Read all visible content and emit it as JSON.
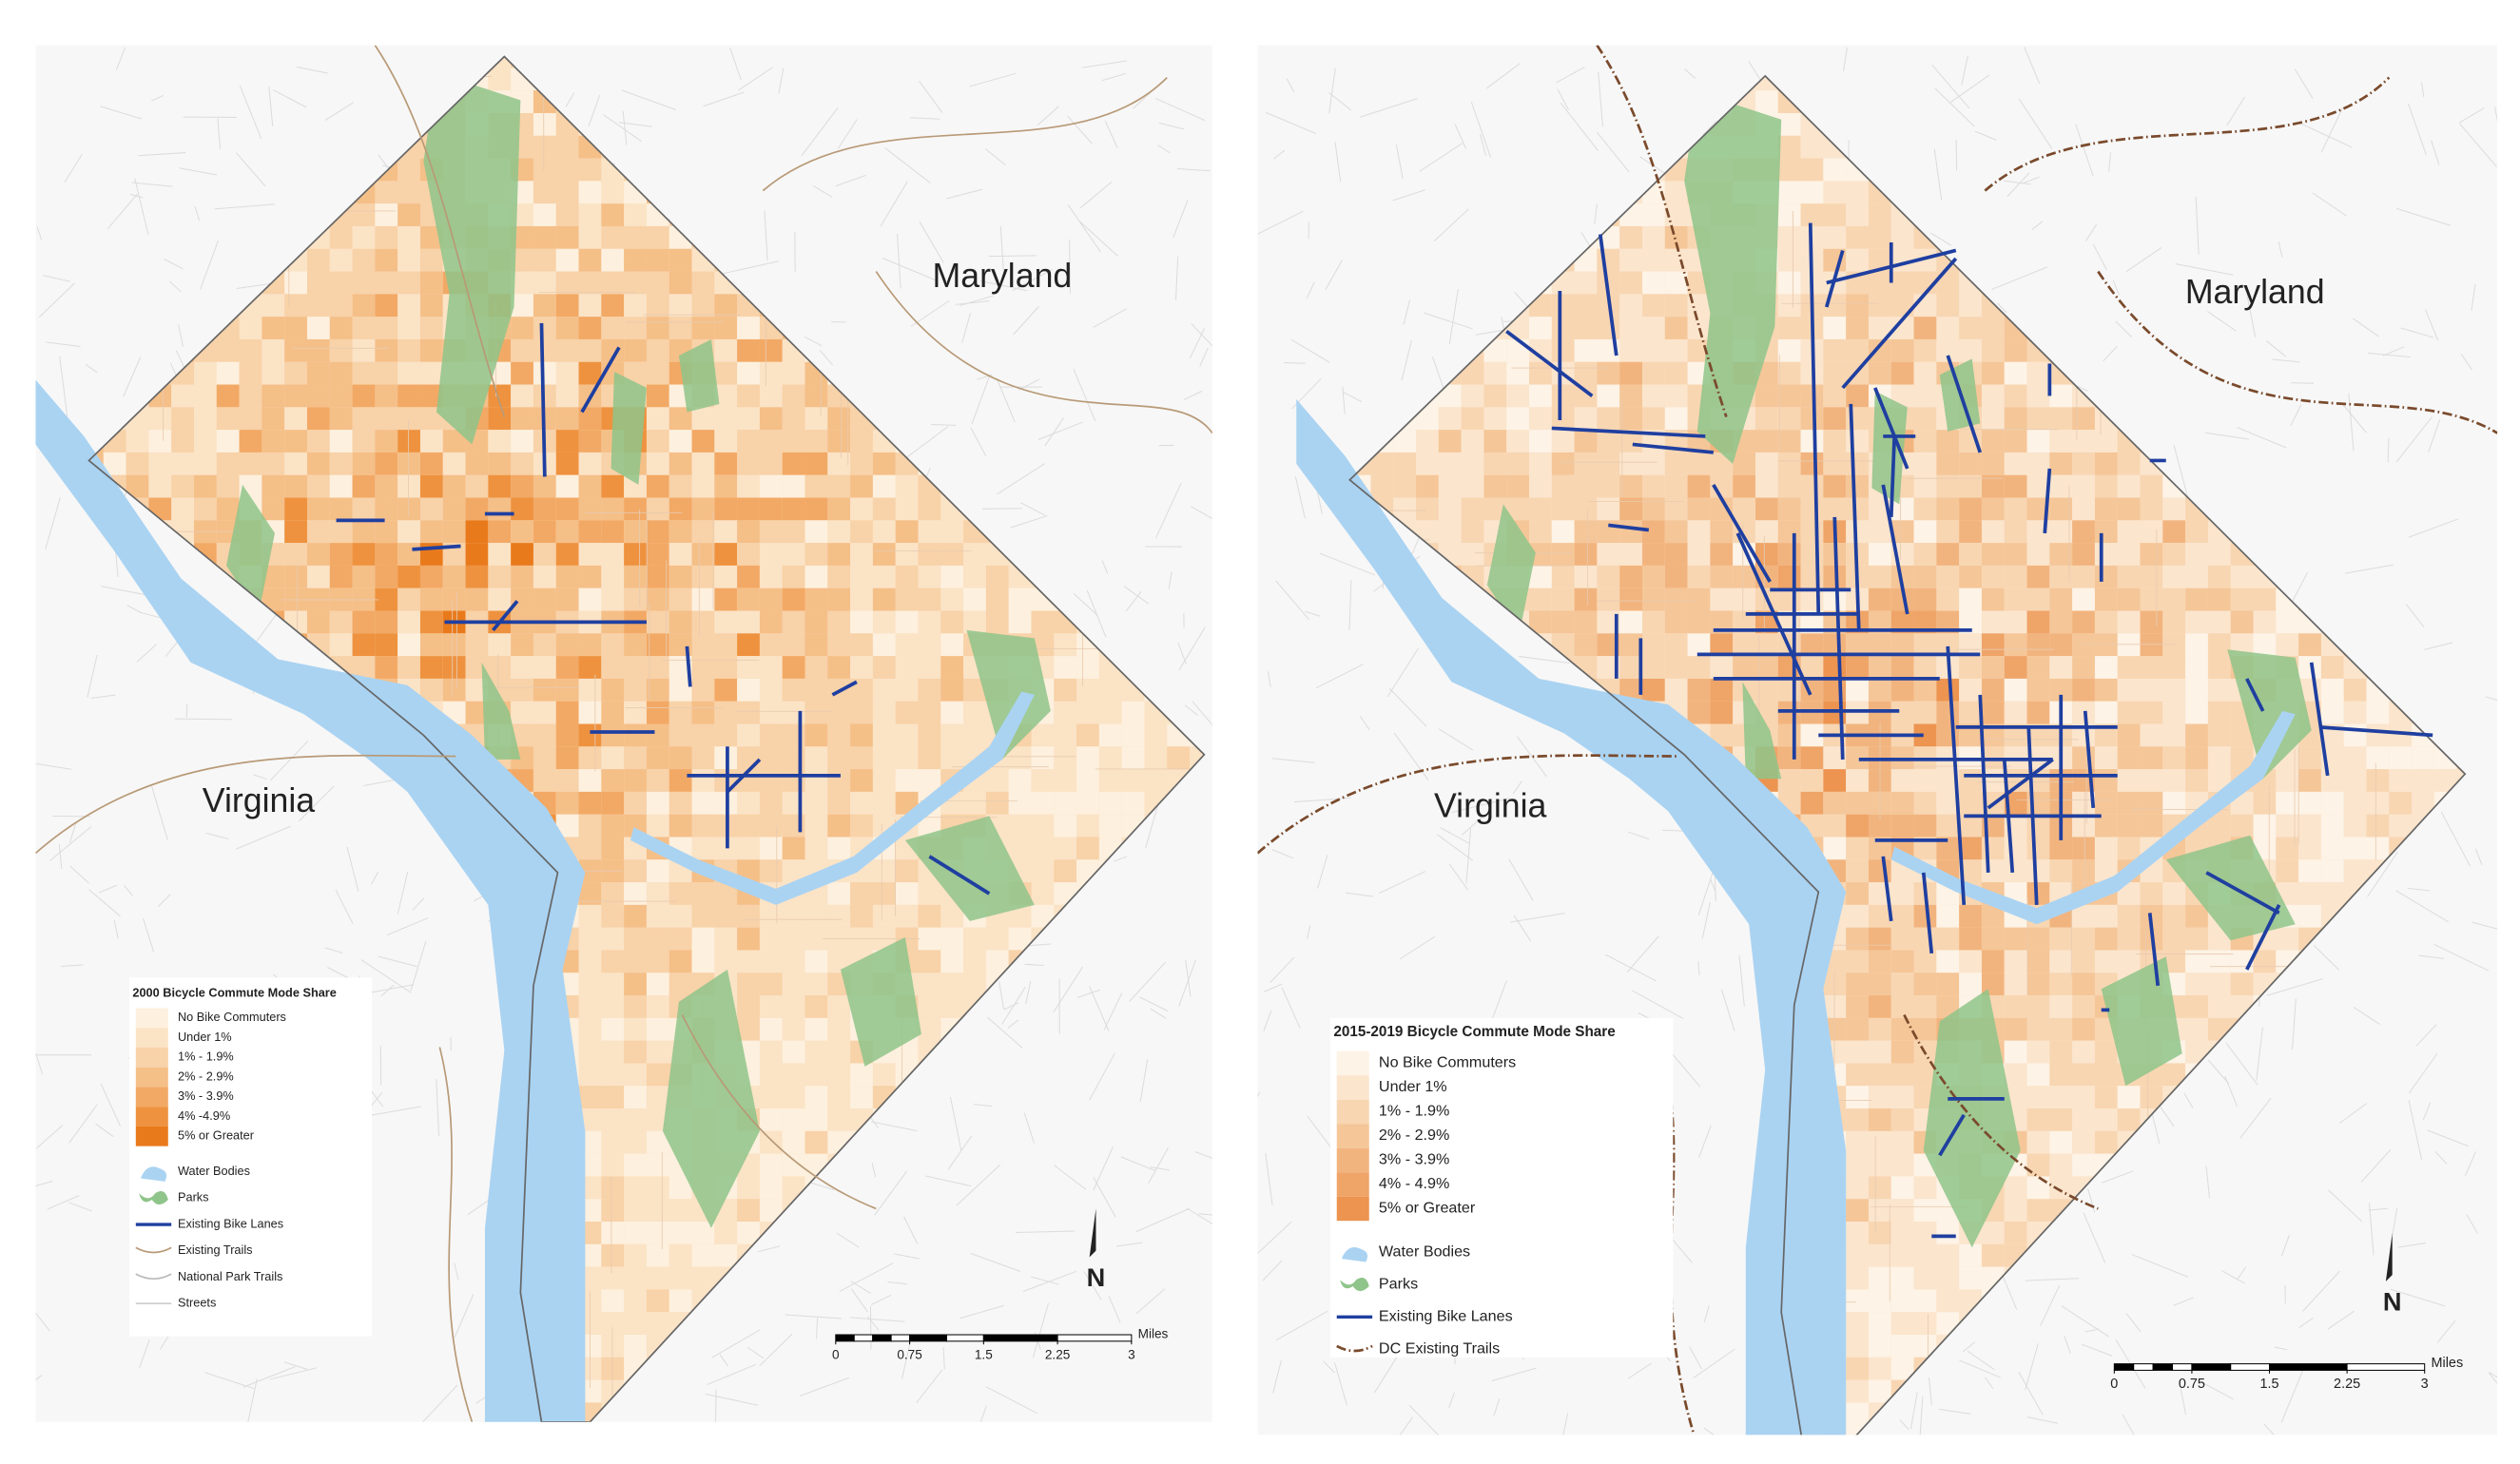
{
  "maps": [
    {
      "labels": [
        "Maryland",
        "Virginia"
      ],
      "legend": {
        "title": "2000 Bicycle Commute Mode Share",
        "classes": [
          {
            "label": "No Bike Commuters",
            "color": "#fdf0de"
          },
          {
            "label": "Under 1%",
            "color": "#fbe3c6"
          },
          {
            "label": "1% - 1.9%",
            "color": "#f8d2a8"
          },
          {
            "label": "2% - 2.9%",
            "color": "#f5bf88"
          },
          {
            "label": "3% - 3.9%",
            "color": "#f2a965"
          },
          {
            "label": "4% -4.9%",
            "color": "#ee923f"
          },
          {
            "label": "5% or Greater",
            "color": "#e97a1c"
          }
        ],
        "layers": [
          "Water Bodies",
          "Parks",
          "Existing Bike Lanes",
          "Existing Trails",
          "National Park Trails",
          "Streets"
        ]
      },
      "scale": {
        "ticks": [
          0,
          0.75,
          1.5,
          2.25,
          3
        ],
        "unit": "Miles"
      },
      "north": "N"
    },
    {
      "labels": [
        "Maryland",
        "Virginia"
      ],
      "legend": {
        "title": "2015-2019 Bicycle Commute Mode Share",
        "classes": [
          {
            "label": "No Bike Commuters",
            "color": "#fdf3e6"
          },
          {
            "label": "Under 1%",
            "color": "#fbe5cd"
          },
          {
            "label": "1% - 1.9%",
            "color": "#f8d6b2"
          },
          {
            "label": "2% - 2.9%",
            "color": "#f5c698"
          },
          {
            "label": "3% - 3.9%",
            "color": "#f2b47e"
          },
          {
            "label": "4% - 4.9%",
            "color": "#efa468"
          },
          {
            "label": "5% or Greater",
            "color": "#ec9450"
          }
        ],
        "layers": [
          "Water Bodies",
          "Parks",
          "Existing Bike Lanes",
          "DC Existing Trails"
        ]
      },
      "scale": {
        "ticks": [
          0,
          0.75,
          1.5,
          2.25,
          3
        ],
        "unit": "Miles"
      },
      "north": "N"
    }
  ]
}
